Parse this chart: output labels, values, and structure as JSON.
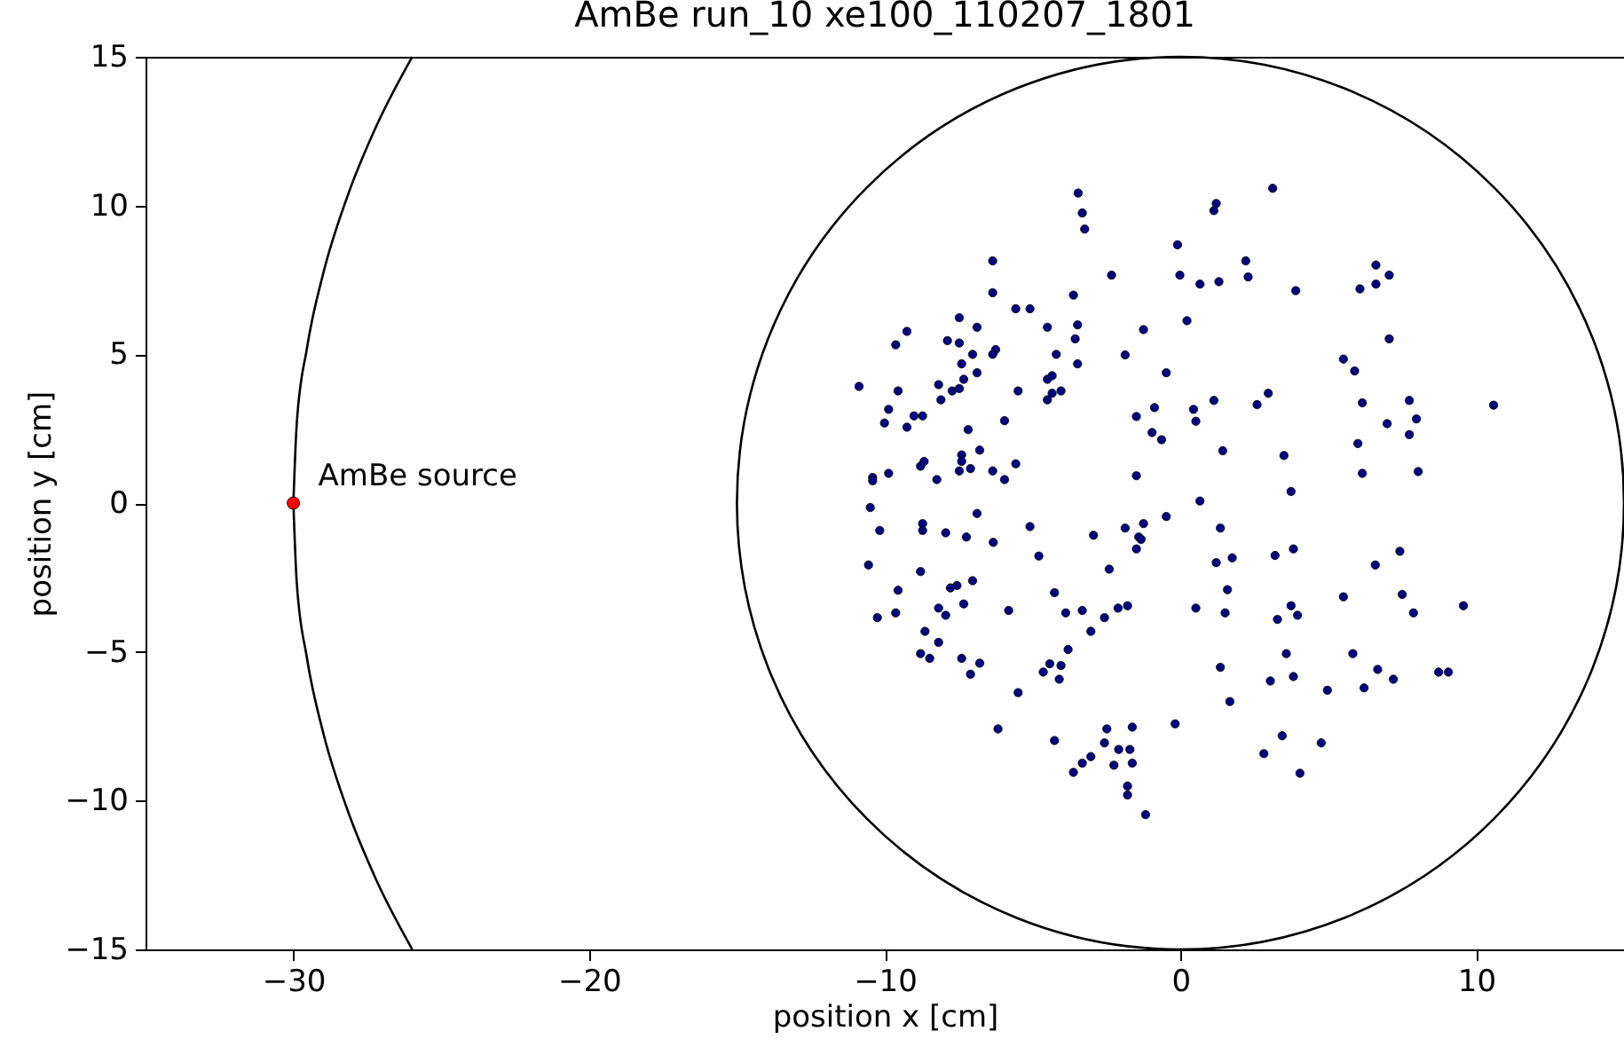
{
  "chart_data": {
    "type": "scatter",
    "title": "AmBe run_10 xe100_110207_1801",
    "xlabel": "position x [cm]",
    "ylabel": "position y [cm]",
    "xlim": [
      -35,
      15
    ],
    "xticks": [
      -30,
      -20,
      -10,
      0,
      10
    ],
    "ylim": [
      -15,
      15
    ],
    "yticks": [
      -15,
      -10,
      -5,
      0,
      5,
      10,
      15
    ],
    "grid": false,
    "marker": "circle",
    "annotations": [
      {
        "text": "AmBe source",
        "x": -30,
        "y": 0
      }
    ],
    "series": [
      {
        "type": "line",
        "color": "#000000",
        "line_style": "solid",
        "marker": "none",
        "x": [
          -30,
          -29.89,
          -29.54,
          -28.98,
          -28.19,
          -27.19,
          -25.98
        ],
        "values": [
          0,
          2.61,
          5.21,
          7.76,
          10.26,
          12.68,
          15
        ]
      },
      {
        "type": "line",
        "color": "#000000",
        "line_style": "solid",
        "marker": "none",
        "x": [
          -30,
          -29.89,
          -29.54,
          -28.98,
          -28.19,
          -27.19,
          -25.98
        ],
        "values": [
          0,
          -2.61,
          -5.21,
          -7.76,
          -10.26,
          -12.68,
          -15
        ]
      },
      {
        "type": "scatter",
        "color": "#000080",
        "x": [
          -6.35,
          -6.35,
          -5.57,
          -5.09,
          -3.62,
          -7.48,
          -6.88,
          -4.5,
          -9.25,
          -9.63,
          -7.88,
          -7.48,
          -6.25,
          -6.35,
          -7.03,
          -4.2,
          -7.4,
          -6.88,
          -7.33,
          -4.5,
          -4.34,
          -10.87,
          -8.18,
          -9.55,
          -7.72,
          -7.48,
          -5.49,
          -4.34,
          -4.04,
          -4.5,
          -8.1,
          -9.87,
          -10.01,
          -9.01,
          -8.72,
          -9.25,
          -5.95,
          -7.18,
          -6.79,
          -8.67,
          -8.79,
          -7.4,
          -7.4,
          -7.48,
          -7.1,
          -6.35,
          -5.57,
          -5.95,
          -8.24,
          -9.87,
          -10.41,
          -10.41,
          -10.49,
          -6.88,
          -3.46,
          -3.32,
          -3.24,
          3.12,
          1.21,
          1.13,
          -0.1,
          2.21,
          2.29,
          -2.33,
          -0.02,
          0.66,
          1.3,
          3.9,
          -3.48,
          -3.56,
          -1.25,
          0.22,
          -3.48,
          -1.87,
          -0.48,
          -1.49,
          -0.88,
          0.44,
          0.52,
          1.13,
          2.59,
          2.97,
          -0.96,
          -0.64,
          1.43,
          3.5,
          -1.49,
          3.74,
          0.66,
          6.61,
          7.06,
          6.61,
          6.07,
          7.06,
          5.51,
          5.89,
          6.15,
          7.74,
          7.98,
          6.99,
          7.74,
          10.59,
          6.0,
          6.15,
          8.04,
          -10.17,
          -8.72,
          -8.72,
          -7.94,
          -7.24,
          -6.33,
          -5.09,
          -4.79,
          -10.55,
          -8.79,
          -9.55,
          -7.78,
          -7.56,
          -7.03,
          -7.33,
          -8.18,
          -7.94,
          -10.25,
          -9.63,
          -5.81,
          -4.26,
          -3.88,
          -8.64,
          -8.18,
          -8.79,
          -8.48,
          -7.4,
          -6.79,
          -7.1,
          -3.8,
          -4.42,
          -4.04,
          -4.64,
          -4.1,
          -5.49,
          -6.17,
          -4.26,
          -0.48,
          -2.94,
          -1.87,
          -1.25,
          -1.41,
          -1.33,
          -1.49,
          -2.41,
          1.35,
          1.21,
          1.75,
          3.2,
          3.82,
          1.59,
          -3.32,
          -2.57,
          -2.11,
          -1.79,
          -3.03,
          0.52,
          1.51,
          3.74,
          3.28,
          3.96,
          1.35,
          3.58,
          3.04,
          3.82,
          1.67,
          -0.18,
          -2.49,
          -1.63,
          -2.57,
          -2.09,
          -1.71,
          -3.03,
          -3.32,
          -3.62,
          -2.25,
          -1.63,
          -1.79,
          -1.79,
          -1.18,
          3.44,
          2.82,
          4.04,
          7.42,
          6.59,
          5.51,
          7.5,
          7.88,
          9.57,
          5.83,
          6.67,
          6.21,
          7.2,
          4.97,
          8.73,
          9.06,
          4.76
        ],
        "values": [
          8.14,
          7.07,
          6.53,
          6.53,
          6.99,
          6.23,
          5.91,
          5.91,
          5.77,
          5.32,
          5.46,
          5.38,
          5.16,
          5.0,
          5.0,
          5.0,
          4.68,
          4.38,
          4.16,
          4.16,
          4.28,
          3.92,
          3.98,
          3.77,
          3.77,
          3.85,
          3.77,
          3.69,
          3.77,
          3.47,
          3.47,
          3.15,
          2.69,
          2.93,
          2.93,
          2.55,
          2.77,
          2.47,
          1.78,
          1.4,
          1.24,
          1.62,
          1.4,
          1.08,
          1.16,
          1.08,
          1.32,
          0.79,
          0.79,
          1.0,
          0.86,
          0.75,
          -0.15,
          -0.35,
          10.42,
          9.75,
          9.21,
          10.58,
          10.07,
          9.83,
          8.68,
          8.14,
          7.6,
          7.66,
          7.66,
          7.36,
          7.44,
          7.14,
          5.99,
          5.52,
          5.83,
          6.13,
          4.68,
          4.98,
          4.38,
          2.91,
          3.21,
          3.15,
          2.75,
          3.45,
          3.31,
          3.69,
          2.37,
          2.13,
          1.76,
          1.6,
          0.92,
          0.39,
          0.07,
          8.0,
          7.66,
          7.36,
          7.2,
          5.52,
          4.84,
          4.44,
          3.37,
          3.45,
          2.83,
          2.67,
          2.3,
          3.29,
          2.0,
          1.0,
          1.06,
          -0.92,
          -0.69,
          -0.92,
          -1.0,
          -1.14,
          -1.32,
          -0.79,
          -1.78,
          -2.08,
          -2.3,
          -2.93,
          -2.85,
          -2.77,
          -2.61,
          -3.39,
          -3.53,
          -3.77,
          -3.85,
          -3.69,
          -3.61,
          -3.01,
          -3.69,
          -4.31,
          -4.68,
          -5.06,
          -5.22,
          -5.22,
          -5.38,
          -5.75,
          -4.92,
          -5.4,
          -5.46,
          -5.68,
          -5.92,
          -6.37,
          -7.59,
          -7.98,
          -0.45,
          -1.08,
          -0.84,
          -0.69,
          -1.14,
          -1.22,
          -1.54,
          -2.22,
          -0.84,
          -2.0,
          -1.84,
          -1.76,
          -1.54,
          -2.91,
          -3.61,
          -3.85,
          -3.53,
          -3.45,
          -4.31,
          -3.53,
          -3.69,
          -3.45,
          -3.91,
          -3.77,
          -5.52,
          -5.06,
          -5.98,
          -5.83,
          -6.67,
          -7.42,
          -7.59,
          -7.53,
          -8.06,
          -8.28,
          -8.28,
          -8.52,
          -8.74,
          -9.05,
          -8.81,
          -8.74,
          -9.51,
          -9.81,
          -10.47,
          -7.82,
          -8.42,
          -9.08,
          -1.62,
          -2.08,
          -3.15,
          -3.07,
          -3.69,
          -3.45,
          -5.06,
          -5.59,
          -6.21,
          -5.92,
          -6.29,
          -5.68,
          -5.68,
          -8.06
        ]
      },
      {
        "type": "scatter",
        "color": "#ff0000",
        "x": [
          -30
        ],
        "values": [
          0
        ]
      }
    ]
  }
}
